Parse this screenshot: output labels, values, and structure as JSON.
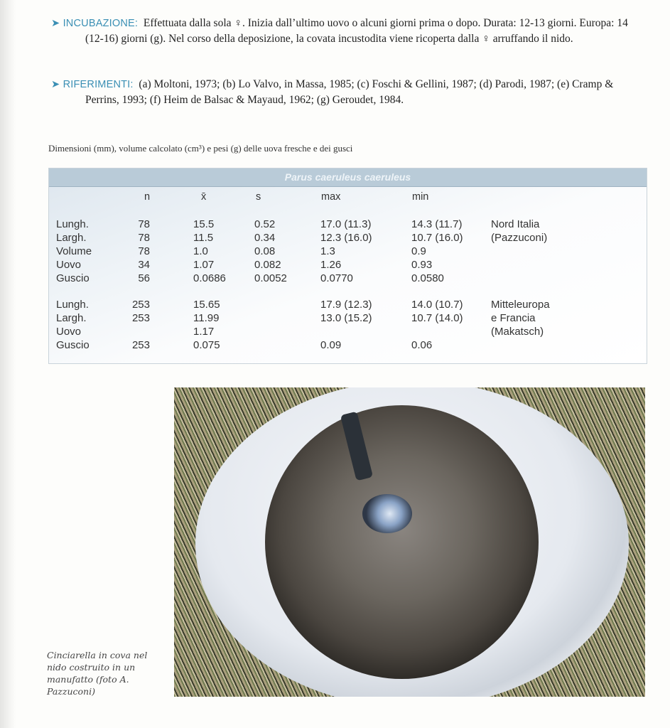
{
  "incubazione": {
    "label": "➤ INCUBAZIONE:",
    "text": "Effettuata dalla sola ♀. Inizia dall’ultimo uovo o alcuni giorni prima o dopo. Durata: 12-13 giorni. Europa: 14 (12-16) giorni (g). Nel corso della deposizione, la covata incustodita viene ricoperta dalla ♀ arruffando il nido."
  },
  "riferimenti": {
    "label": "➤ RIFERIMENTI:",
    "text": "(a) Moltoni, 1973; (b) Lo Valvo, in Massa, 1985; (c) Foschi & Gellini, 1987; (d) Parodi, 1987; (e) Cramp & Perrins, 1993; (f) Heim de Balsac & Mayaud, 1962; (g) Geroudet, 1984."
  },
  "table_caption": "Dimensioni (mm), volume calcolato (cm³) e pesi (g) delle uova fresche e dei gusci",
  "table": {
    "title": "Parus caeruleus caeruleus",
    "columns": [
      "n",
      "x̄",
      "s",
      "max",
      "min"
    ],
    "groups": [
      {
        "source": [
          "Nord Italia",
          "(Pazzuconi)"
        ],
        "rows": [
          [
            "Lungh.",
            "78",
            "15.5",
            "0.52",
            "17.0 (11.3)",
            "14.3 (11.7)"
          ],
          [
            "Largh.",
            "78",
            "11.5",
            "0.34",
            "12.3 (16.0)",
            "10.7 (16.0)"
          ],
          [
            "Volume",
            "78",
            "1.0",
            "0.08",
            "1.3",
            "0.9"
          ],
          [
            "Uovo",
            "34",
            "1.07",
            "0.082",
            "1.26",
            "0.93"
          ],
          [
            "Guscio",
            "56",
            "0.0686",
            "0.0052",
            "0.0770",
            "0.0580"
          ]
        ]
      },
      {
        "source": [
          "Mitteleuropa",
          "e Francia",
          "(Makatsch)"
        ],
        "rows": [
          [
            "Lungh.",
            "253",
            "15.65",
            "",
            "17.9 (12.3)",
            "14.0 (10.7)"
          ],
          [
            "Largh.",
            "253",
            "11.99",
            "",
            "13.0 (15.2)",
            "10.7 (14.0)"
          ],
          [
            "Uovo",
            "",
            "1.17",
            "",
            "",
            ""
          ],
          [
            "Guscio",
            "253",
            "0.075",
            "",
            "0.09",
            "0.06"
          ]
        ]
      }
    ]
  },
  "photo_caption": "Cinciarella in cova nel nido costruito in un manufatto (foto A. Pazzuconi)",
  "colors": {
    "heading": "#3a8fb4",
    "table_header": "#b9cbd8"
  }
}
